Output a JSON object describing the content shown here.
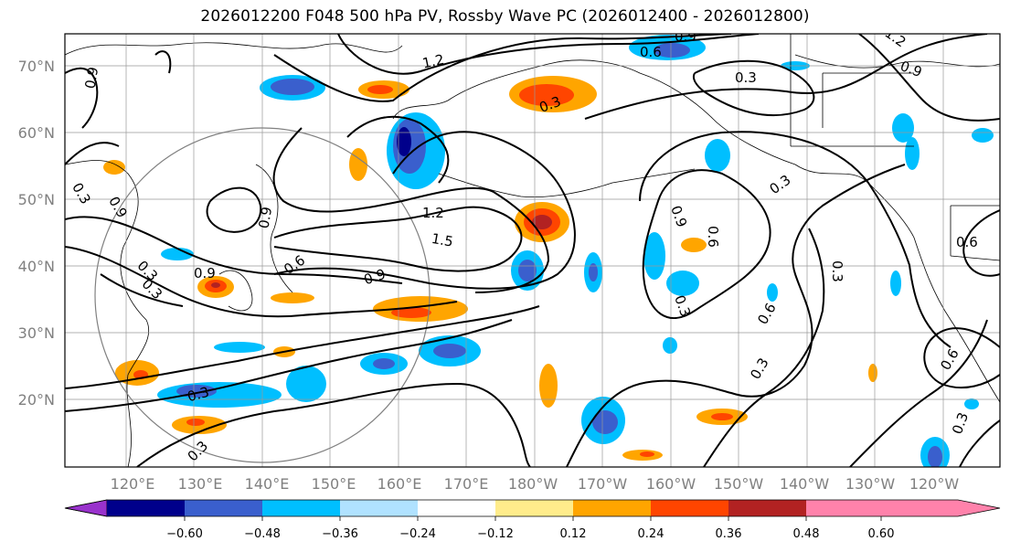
{
  "title": "2026012200 F048 500 hPa PV, Rossby Wave PC (2026012400 - 2026012800)",
  "latitude_labels": [
    "70°N",
    "60°N",
    "50°N",
    "40°N",
    "30°N",
    "20°N"
  ],
  "longitude_labels": [
    "120°E",
    "130°E",
    "140°E",
    "150°E",
    "160°E",
    "170°E",
    "180°W",
    "170°W",
    "160°W",
    "150°W",
    "140°W",
    "130°W",
    "120°W"
  ],
  "colorbar": {
    "colors": [
      "#9932cc",
      "#00008b",
      "#3a5fcd",
      "#00bfff",
      "#b0e2ff",
      "#ffffff",
      "#ffec8b",
      "#ffa500",
      "#ff4500",
      "#b22222",
      "#ff82ab"
    ],
    "tick_labels": [
      "−0.60",
      "−0.48",
      "−0.36",
      "−0.24",
      "−0.12",
      "0.12",
      "0.24",
      "0.36",
      "0.48",
      "0.60"
    ]
  },
  "contour_labels": [
    {
      "text": "1.2"
    },
    {
      "text": "0.6"
    },
    {
      "text": "0.9"
    },
    {
      "text": "0.3"
    },
    {
      "text": "0.3"
    },
    {
      "text": "1.2"
    },
    {
      "text": "1.5"
    },
    {
      "text": "0.9"
    },
    {
      "text": "0.6"
    },
    {
      "text": "0.9"
    },
    {
      "text": "0.3"
    },
    {
      "text": "0.3"
    },
    {
      "text": "0.3"
    },
    {
      "text": "0.9"
    },
    {
      "text": "0.6"
    },
    {
      "text": "0.3"
    },
    {
      "text": "0.6"
    },
    {
      "text": "0.3"
    },
    {
      "text": "0.3"
    },
    {
      "text": "0.6"
    },
    {
      "text": "0.6"
    },
    {
      "text": "0.3"
    },
    {
      "text": "0.9"
    },
    {
      "text": "0.9"
    },
    {
      "text": "0.3"
    },
    {
      "text": "0.3"
    },
    {
      "text": "0.9"
    },
    {
      "text": "0.9"
    },
    {
      "text": "0.3"
    },
    {
      "text": "1.2"
    }
  ]
}
